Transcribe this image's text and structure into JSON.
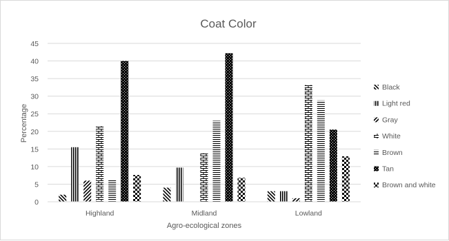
{
  "chart_data": {
    "type": "bar",
    "title": "Coat Color",
    "xlabel": "Agro-ecological zones",
    "ylabel": "Percentage",
    "ylim": [
      0,
      45
    ],
    "yticks": [
      "0",
      "5",
      "10",
      "15",
      "20",
      "25",
      "30",
      "35",
      "40",
      "45"
    ],
    "grid": true,
    "legend_position": "right",
    "categories": [
      "Highland",
      "Midland",
      "Lowland"
    ],
    "series": [
      {
        "name": "Black",
        "pattern": "diag-down",
        "values": [
          2,
          4,
          3
        ]
      },
      {
        "name": "Light red",
        "pattern": "vertical",
        "values": [
          15.5,
          9.7,
          3
        ]
      },
      {
        "name": "Gray",
        "pattern": "diag-up",
        "values": [
          6,
          0,
          1
        ]
      },
      {
        "name": "White",
        "pattern": "brick",
        "values": [
          21.5,
          13.8,
          33.2
        ]
      },
      {
        "name": "Brown",
        "pattern": "horizontal",
        "values": [
          6.3,
          23,
          28.8
        ]
      },
      {
        "name": "Tan",
        "pattern": "dots",
        "values": [
          40,
          42.2,
          20.5
        ]
      },
      {
        "name": "Brown and white",
        "pattern": "check",
        "values": [
          7.6,
          6.8,
          12.9
        ]
      }
    ],
    "colors": {
      "ink": "#000000",
      "grid": "#d9d9d9",
      "text": "#595959"
    }
  }
}
